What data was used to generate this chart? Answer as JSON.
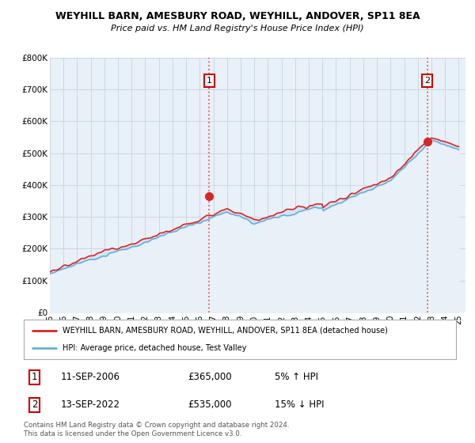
{
  "title": "WEYHILL BARN, AMESBURY ROAD, WEYHILL, ANDOVER, SP11 8EA",
  "subtitle": "Price paid vs. HM Land Registry's House Price Index (HPI)",
  "ylabel_ticks": [
    "£0",
    "£100K",
    "£200K",
    "£300K",
    "£400K",
    "£500K",
    "£600K",
    "£700K",
    "£800K"
  ],
  "ytick_values": [
    0,
    100000,
    200000,
    300000,
    400000,
    500000,
    600000,
    700000,
    800000
  ],
  "ylim": [
    0,
    800000
  ],
  "xlim_start": 1995.0,
  "xlim_end": 2025.5,
  "xtick_years": [
    1995,
    1996,
    1997,
    1998,
    1999,
    2000,
    2001,
    2002,
    2003,
    2004,
    2005,
    2006,
    2007,
    2008,
    2009,
    2010,
    2011,
    2012,
    2013,
    2014,
    2015,
    2016,
    2017,
    2018,
    2019,
    2020,
    2021,
    2022,
    2023,
    2024,
    2025
  ],
  "xtick_labels": [
    "95",
    "96",
    "97",
    "98",
    "99",
    "00",
    "01",
    "02",
    "03",
    "04",
    "05",
    "06",
    "07",
    "08",
    "09",
    "10",
    "11",
    "12",
    "13",
    "14",
    "15",
    "16",
    "17",
    "18",
    "19",
    "20",
    "21",
    "22",
    "23",
    "24",
    "25"
  ],
  "hpi_color": "#6baed6",
  "price_color": "#d62728",
  "fill_color": "#ddeeff",
  "vline_color": "#e06060",
  "purchase1_x": 2006.7,
  "purchase1_y": 365000,
  "purchase2_x": 2022.7,
  "purchase2_y": 535000,
  "legend_line1": "WEYHILL BARN, AMESBURY ROAD, WEYHILL, ANDOVER, SP11 8EA (detached house)",
  "legend_line2": "HPI: Average price, detached house, Test Valley",
  "table_rows": [
    {
      "num": "1",
      "date": "11-SEP-2006",
      "price": "£365,000",
      "pct": "5% ↑ HPI"
    },
    {
      "num": "2",
      "date": "13-SEP-2022",
      "price": "£535,000",
      "pct": "15% ↓ HPI"
    }
  ],
  "footer": "Contains HM Land Registry data © Crown copyright and database right 2024.\nThis data is licensed under the Open Government Licence v3.0.",
  "background_color": "#ffffff",
  "chart_bg_color": "#e8f0f8",
  "grid_color": "#c8d4e0"
}
